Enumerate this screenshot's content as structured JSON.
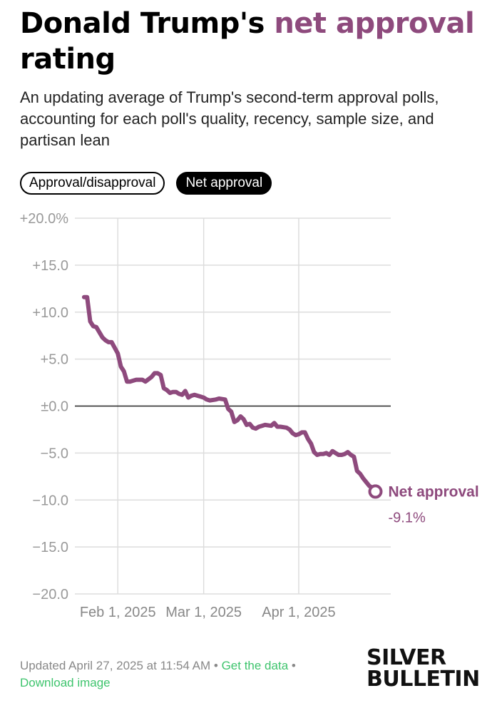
{
  "header": {
    "title_part1": "Donald Trump's ",
    "title_accent": "net approval",
    "title_part2": " rating",
    "subtitle": "An updating average of Trump's second-term approval polls, accounting for each poll's quality, recency, sample size, and partisan lean"
  },
  "toggles": [
    {
      "label": "Approval/disapproval",
      "active": false
    },
    {
      "label": "Net approval",
      "active": true
    }
  ],
  "colors": {
    "accent": "#8e4a7d",
    "grid": "#dddddd",
    "zero_line": "#222222",
    "link": "#3ec46d"
  },
  "chart_data": {
    "type": "line",
    "x_type": "date",
    "ylim": [
      -20,
      20
    ],
    "y_ticks": [
      {
        "value": 20,
        "label": "+20.0%"
      },
      {
        "value": 15,
        "label": "+15.0"
      },
      {
        "value": 10,
        "label": "+10.0"
      },
      {
        "value": 5,
        "label": "+5.0"
      },
      {
        "value": 0,
        "label": "±0.0"
      },
      {
        "value": -5,
        "label": "−5.0"
      },
      {
        "value": -10,
        "label": "−10.0"
      },
      {
        "value": -15,
        "label": "−15.0"
      },
      {
        "value": -20,
        "label": "−20.0"
      }
    ],
    "x_ticks": [
      {
        "date": "2025-02-01",
        "label": "Feb 1, 2025"
      },
      {
        "date": "2025-03-01",
        "label": "Mar 1, 2025"
      },
      {
        "date": "2025-04-01",
        "label": "Apr 1, 2025"
      }
    ],
    "xlim": [
      "2025-01-18",
      "2025-05-01"
    ],
    "series": [
      {
        "name": "Net approval",
        "end_label": "-9.1%",
        "points": [
          [
            "2025-01-21",
            11.6
          ],
          [
            "2025-01-22",
            11.6
          ],
          [
            "2025-01-23",
            9.0
          ],
          [
            "2025-01-24",
            8.5
          ],
          [
            "2025-01-25",
            8.4
          ],
          [
            "2025-01-27",
            7.3
          ],
          [
            "2025-01-28",
            7.0
          ],
          [
            "2025-01-29",
            6.8
          ],
          [
            "2025-01-30",
            6.8
          ],
          [
            "2025-01-31",
            6.2
          ],
          [
            "2025-02-01",
            5.6
          ],
          [
            "2025-02-02",
            4.2
          ],
          [
            "2025-02-03",
            3.7
          ],
          [
            "2025-02-04",
            2.6
          ],
          [
            "2025-02-05",
            2.6
          ],
          [
            "2025-02-06",
            2.7
          ],
          [
            "2025-02-07",
            2.8
          ],
          [
            "2025-02-09",
            2.8
          ],
          [
            "2025-02-10",
            2.6
          ],
          [
            "2025-02-12",
            3.1
          ],
          [
            "2025-02-13",
            3.5
          ],
          [
            "2025-02-14",
            3.5
          ],
          [
            "2025-02-15",
            3.3
          ],
          [
            "2025-02-16",
            1.9
          ],
          [
            "2025-02-17",
            1.7
          ],
          [
            "2025-02-18",
            1.4
          ],
          [
            "2025-02-19",
            1.5
          ],
          [
            "2025-02-20",
            1.5
          ],
          [
            "2025-02-21",
            1.3
          ],
          [
            "2025-02-22",
            1.2
          ],
          [
            "2025-02-23",
            1.6
          ],
          [
            "2025-02-24",
            0.9
          ],
          [
            "2025-02-25",
            1.1
          ],
          [
            "2025-02-26",
            1.2
          ],
          [
            "2025-02-27",
            1.1
          ],
          [
            "2025-02-28",
            1.0
          ],
          [
            "2025-03-01",
            0.9
          ],
          [
            "2025-03-02",
            0.7
          ],
          [
            "2025-03-03",
            0.6
          ],
          [
            "2025-03-05",
            0.7
          ],
          [
            "2025-03-06",
            0.8
          ],
          [
            "2025-03-08",
            0.7
          ],
          [
            "2025-03-09",
            -0.3
          ],
          [
            "2025-03-10",
            -0.6
          ],
          [
            "2025-03-11",
            -1.7
          ],
          [
            "2025-03-12",
            -1.5
          ],
          [
            "2025-03-13",
            -1.1
          ],
          [
            "2025-03-14",
            -1.4
          ],
          [
            "2025-03-15",
            -2.0
          ],
          [
            "2025-03-16",
            -1.9
          ],
          [
            "2025-03-17",
            -2.3
          ],
          [
            "2025-03-18",
            -2.4
          ],
          [
            "2025-03-19",
            -2.2
          ],
          [
            "2025-03-20",
            -2.1
          ],
          [
            "2025-03-21",
            -2.0
          ],
          [
            "2025-03-23",
            -2.1
          ],
          [
            "2025-03-24",
            -1.8
          ],
          [
            "2025-03-25",
            -2.2
          ],
          [
            "2025-03-26",
            -2.2
          ],
          [
            "2025-03-28",
            -2.3
          ],
          [
            "2025-03-29",
            -2.5
          ],
          [
            "2025-03-30",
            -2.9
          ],
          [
            "2025-03-31",
            -3.1
          ],
          [
            "2025-04-01",
            -3.0
          ],
          [
            "2025-04-02",
            -2.8
          ],
          [
            "2025-04-03",
            -2.8
          ],
          [
            "2025-04-04",
            -3.5
          ],
          [
            "2025-04-05",
            -4.0
          ],
          [
            "2025-04-06",
            -4.9
          ],
          [
            "2025-04-07",
            -5.2
          ],
          [
            "2025-04-08",
            -5.1
          ],
          [
            "2025-04-09",
            -5.1
          ],
          [
            "2025-04-10",
            -5.0
          ],
          [
            "2025-04-11",
            -5.2
          ],
          [
            "2025-04-12",
            -4.8
          ],
          [
            "2025-04-13",
            -5.0
          ],
          [
            "2025-04-14",
            -5.2
          ],
          [
            "2025-04-15",
            -5.2
          ],
          [
            "2025-04-16",
            -5.1
          ],
          [
            "2025-04-17",
            -4.9
          ],
          [
            "2025-04-18",
            -5.2
          ],
          [
            "2025-04-19",
            -5.4
          ],
          [
            "2025-04-20",
            -6.9
          ],
          [
            "2025-04-21",
            -7.2
          ],
          [
            "2025-04-22",
            -7.7
          ],
          [
            "2025-04-23",
            -8.1
          ],
          [
            "2025-04-24",
            -8.5
          ],
          [
            "2025-04-25",
            -8.7
          ],
          [
            "2025-04-26",
            -9.1
          ]
        ]
      }
    ],
    "zero_line": true,
    "grid": true
  },
  "footer": {
    "updated": "Updated April 27, 2025 at 11:54 AM",
    "separator": "•",
    "get_data": "Get the data",
    "download": "Download image",
    "brand_line1": "SILVER",
    "brand_line2": "BULLETIN"
  }
}
